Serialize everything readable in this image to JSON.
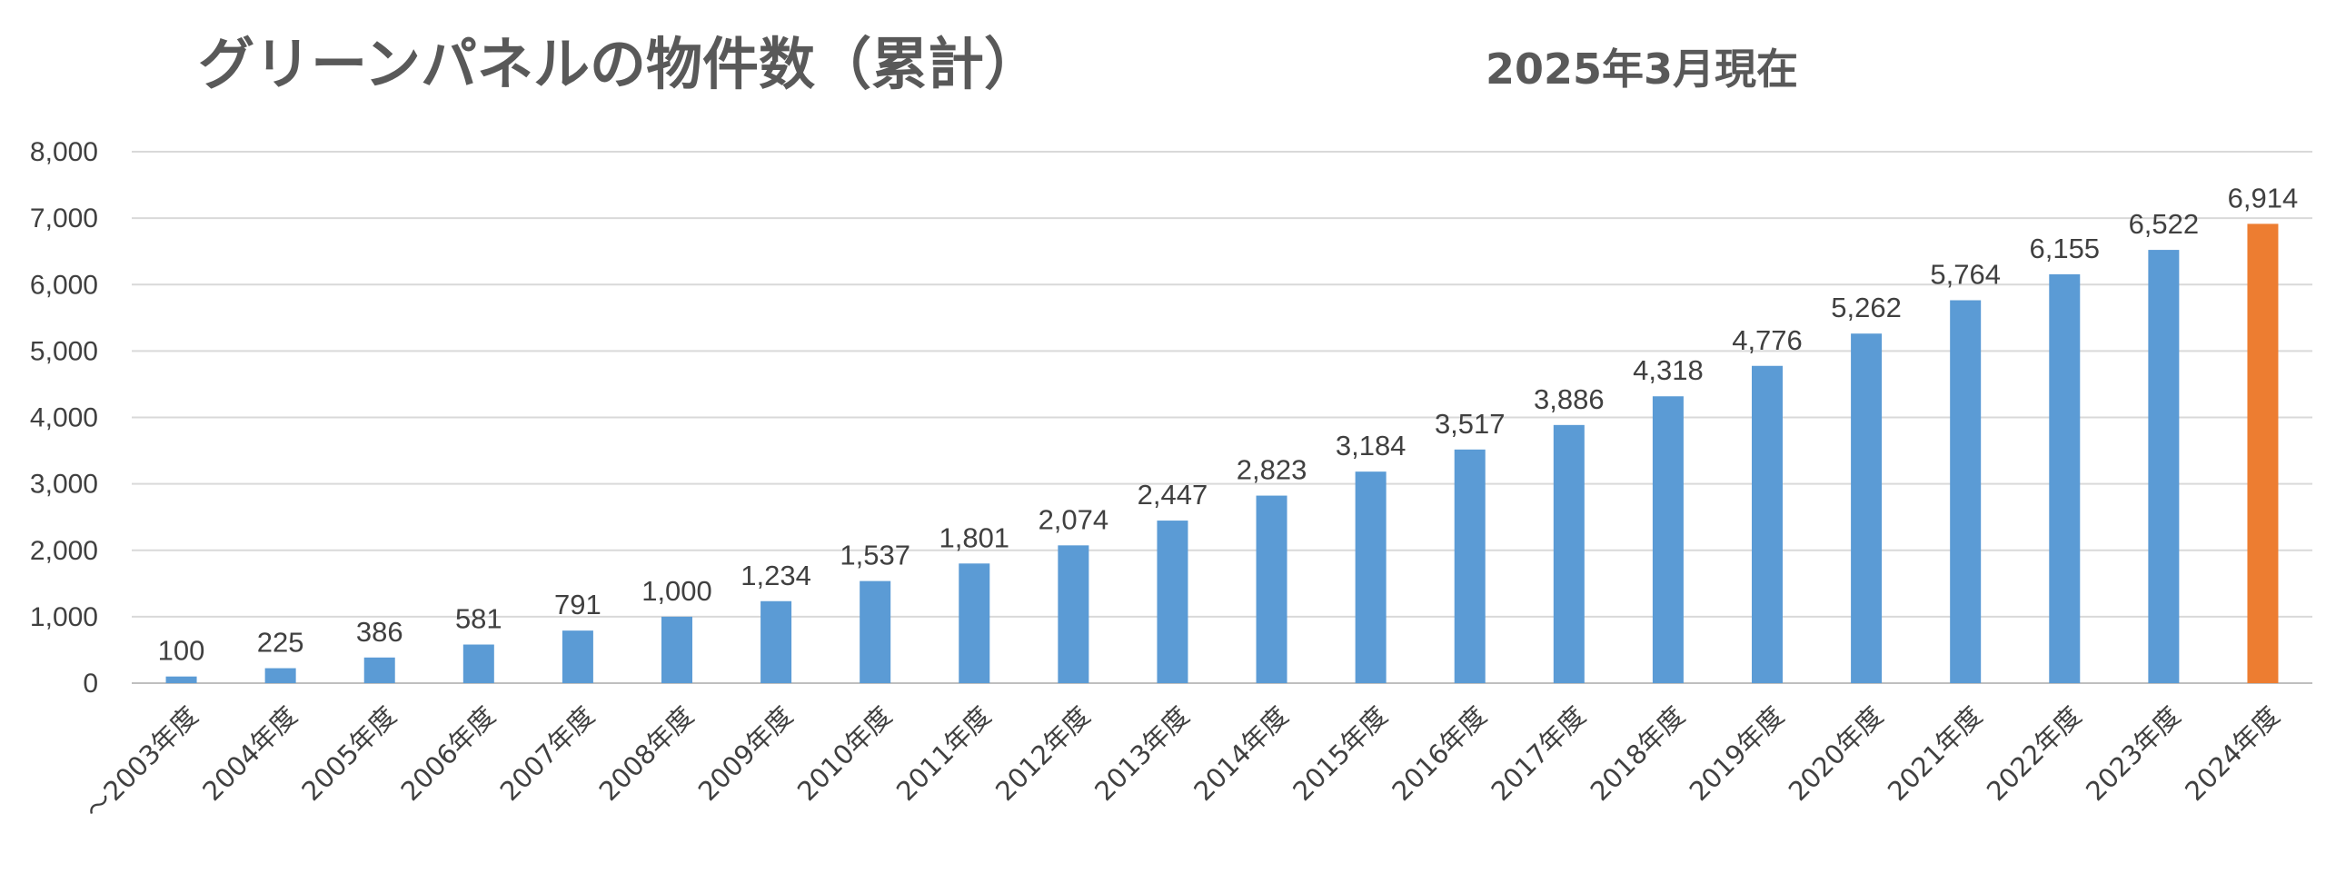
{
  "chart_data": {
    "type": "bar",
    "title": "グリーンパネルの物件数（累計）",
    "subtitle": "2025年3月現在",
    "xlabel": "",
    "ylabel": "",
    "ylim": [
      0,
      8000
    ],
    "yticks": [
      0,
      1000,
      2000,
      3000,
      4000,
      5000,
      6000,
      7000,
      8000
    ],
    "ytick_labels": [
      "0",
      "1,000",
      "2,000",
      "3,000",
      "4,000",
      "5,000",
      "6,000",
      "7,000",
      "8,000"
    ],
    "grid": true,
    "legend": "none",
    "categories": [
      "～2003年度",
      "2004年度",
      "2005年度",
      "2006年度",
      "2007年度",
      "2008年度",
      "2009年度",
      "2010年度",
      "2011年度",
      "2012年度",
      "2013年度",
      "2014年度",
      "2015年度",
      "2016年度",
      "2017年度",
      "2018年度",
      "2019年度",
      "2020年度",
      "2021年度",
      "2022年度",
      "2023年度",
      "2024年度"
    ],
    "values": [
      100,
      225,
      386,
      581,
      791,
      1000,
      1234,
      1537,
      1801,
      2074,
      2447,
      2823,
      3184,
      3517,
      3886,
      4318,
      4776,
      5262,
      5764,
      6155,
      6522,
      6914
    ],
    "value_labels": [
      "100",
      "225",
      "386",
      "581",
      "791",
      "1,000",
      "1,234",
      "1,537",
      "1,801",
      "2,074",
      "2,447",
      "2,823",
      "3,184",
      "3,517",
      "3,886",
      "4,318",
      "4,776",
      "5,262",
      "5,764",
      "6,155",
      "6,522",
      "6,914"
    ],
    "colors": {
      "bar": "#5b9bd5",
      "highlight": "#ed7d31"
    },
    "highlight_index": 21
  }
}
